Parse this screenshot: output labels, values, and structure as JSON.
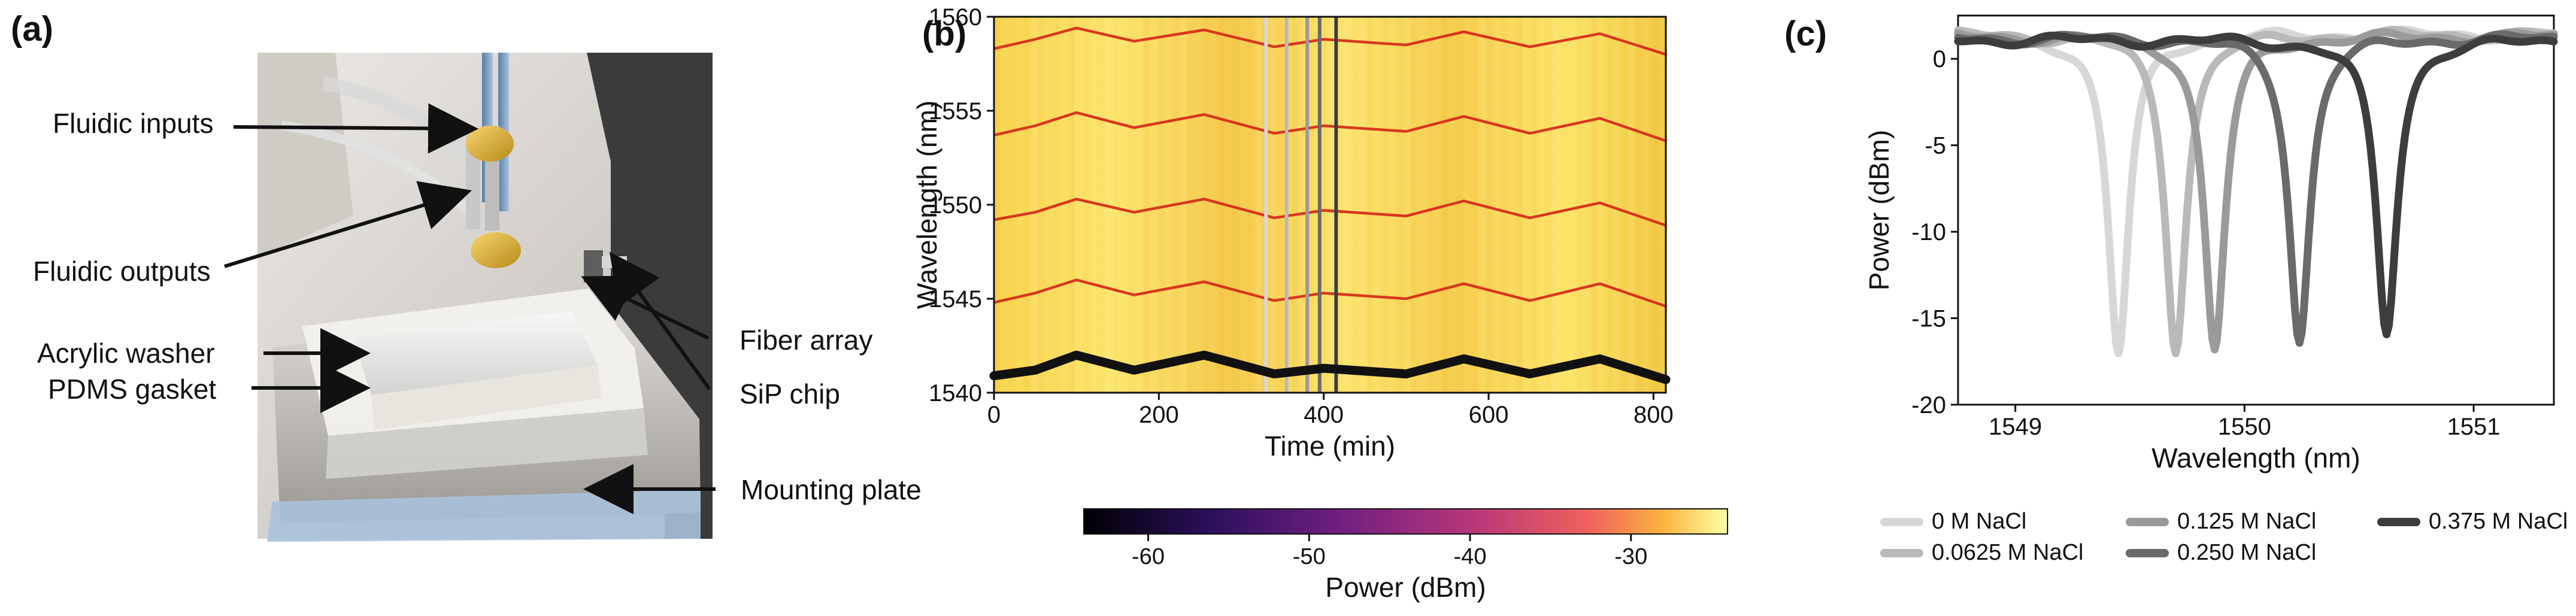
{
  "panels": {
    "a": {
      "label": "(a)"
    },
    "b": {
      "label": "(b)"
    },
    "c": {
      "label": "(c)"
    }
  },
  "photo": {
    "annotations": [
      "Fluidic inputs",
      "Fluidic outputs",
      "Acrylic washer",
      "PDMS gasket",
      "Fiber array",
      "SiP chip",
      "Mounting plate"
    ]
  },
  "colors": {
    "heatmap_low": "#000004",
    "heatmap_high": "#fcffa4",
    "resonance_trace": "#d62d1a",
    "tracked_trace": "#111111",
    "legend_0": "#d7d7d7",
    "legend_0625": "#b9b9b9",
    "legend_0125": "#9a9a9a",
    "legend_0250": "#6a6a6a",
    "legend_0375": "#3d3d3d"
  },
  "chart_data": [
    {
      "type": "heatmap",
      "title": "",
      "xlabel": "Time (min)",
      "ylabel": "Wavelength (nm)",
      "xlim": [
        0,
        815
      ],
      "ylim": [
        1540,
        1560
      ],
      "x_ticks": [
        0,
        200,
        400,
        600,
        800
      ],
      "y_ticks": [
        1540,
        1545,
        1550,
        1555,
        1560
      ],
      "resonance_bands": [
        {
          "name": "resonance-1541",
          "x": [
            0,
            50,
            100,
            170,
            255,
            340,
            400,
            500,
            570,
            650,
            735,
            815
          ],
          "y": [
            1540.9,
            1541.2,
            1542.0,
            1541.2,
            1542.0,
            1541.0,
            1541.3,
            1541.0,
            1541.8,
            1541.0,
            1541.8,
            1540.7
          ]
        },
        {
          "name": "resonance-1545",
          "x": [
            0,
            50,
            100,
            170,
            255,
            340,
            400,
            500,
            570,
            650,
            735,
            815
          ],
          "y": [
            1544.8,
            1545.3,
            1546.0,
            1545.2,
            1545.9,
            1544.9,
            1545.3,
            1545.0,
            1545.8,
            1544.9,
            1545.8,
            1544.6
          ]
        },
        {
          "name": "resonance-1550",
          "x": [
            0,
            50,
            100,
            170,
            255,
            340,
            400,
            500,
            570,
            650,
            735,
            815
          ],
          "y": [
            1549.2,
            1549.6,
            1550.3,
            1549.6,
            1550.3,
            1549.3,
            1549.7,
            1549.4,
            1550.2,
            1549.3,
            1550.1,
            1548.9
          ]
        },
        {
          "name": "resonance-1554",
          "x": [
            0,
            50,
            100,
            170,
            255,
            340,
            400,
            500,
            570,
            650,
            735,
            815
          ],
          "y": [
            1553.7,
            1554.2,
            1554.9,
            1554.1,
            1554.8,
            1553.8,
            1554.2,
            1553.9,
            1554.7,
            1553.8,
            1554.6,
            1553.4
          ]
        },
        {
          "name": "resonance-1558",
          "x": [
            0,
            50,
            100,
            170,
            255,
            340,
            400,
            500,
            570,
            650,
            735,
            815
          ],
          "y": [
            1558.3,
            1558.8,
            1559.4,
            1558.7,
            1559.3,
            1558.4,
            1558.8,
            1558.5,
            1559.2,
            1558.4,
            1559.1,
            1558.0
          ]
        }
      ],
      "tracked_series": {
        "name": "tracked-resonance",
        "x": [
          0,
          50,
          100,
          170,
          255,
          340,
          400,
          500,
          570,
          650,
          735,
          815
        ],
        "y": [
          1540.9,
          1541.2,
          1542.0,
          1541.2,
          1542.0,
          1541.0,
          1541.3,
          1541.0,
          1541.8,
          1541.0,
          1541.8,
          1540.7
        ]
      },
      "sample_lines": [
        {
          "time": 330,
          "color": "#d7d7d7"
        },
        {
          "time": 355,
          "color": "#b9b9b9"
        },
        {
          "time": 380,
          "color": "#9a9a9a"
        },
        {
          "time": 395,
          "color": "#6a6a6a"
        },
        {
          "time": 415,
          "color": "#3d3d3d"
        }
      ],
      "colorbar": {
        "label": "Power (dBm)",
        "ticks": [
          -60,
          -50,
          -40,
          -30
        ],
        "range": [
          -64,
          -24
        ]
      }
    },
    {
      "type": "line",
      "title": "",
      "xlabel": "Wavelength (nm)",
      "ylabel": "Power (dBm)",
      "xlim": [
        1548.75,
        1551.35
      ],
      "ylim": [
        -20,
        2.5
      ],
      "x_ticks": [
        1549,
        1550,
        1551
      ],
      "y_ticks": [
        -20,
        -15,
        -10,
        -5,
        0
      ],
      "series": [
        {
          "name": "0 M NaCl",
          "center": 1549.45,
          "depth": -17.1,
          "baseline": 1.4
        },
        {
          "name": "0.0625 M NaCl",
          "center": 1549.7,
          "depth": -16.7,
          "baseline": 1.4
        },
        {
          "name": "0.125 M NaCl",
          "center": 1549.87,
          "depth": -16.8,
          "baseline": 1.3
        },
        {
          "name": "0.250 M NaCl",
          "center": 1550.24,
          "depth": -16.3,
          "baseline": 1.2
        },
        {
          "name": "0.375 M NaCl",
          "center": 1550.62,
          "depth": -15.9,
          "baseline": 1.1
        }
      ]
    }
  ]
}
